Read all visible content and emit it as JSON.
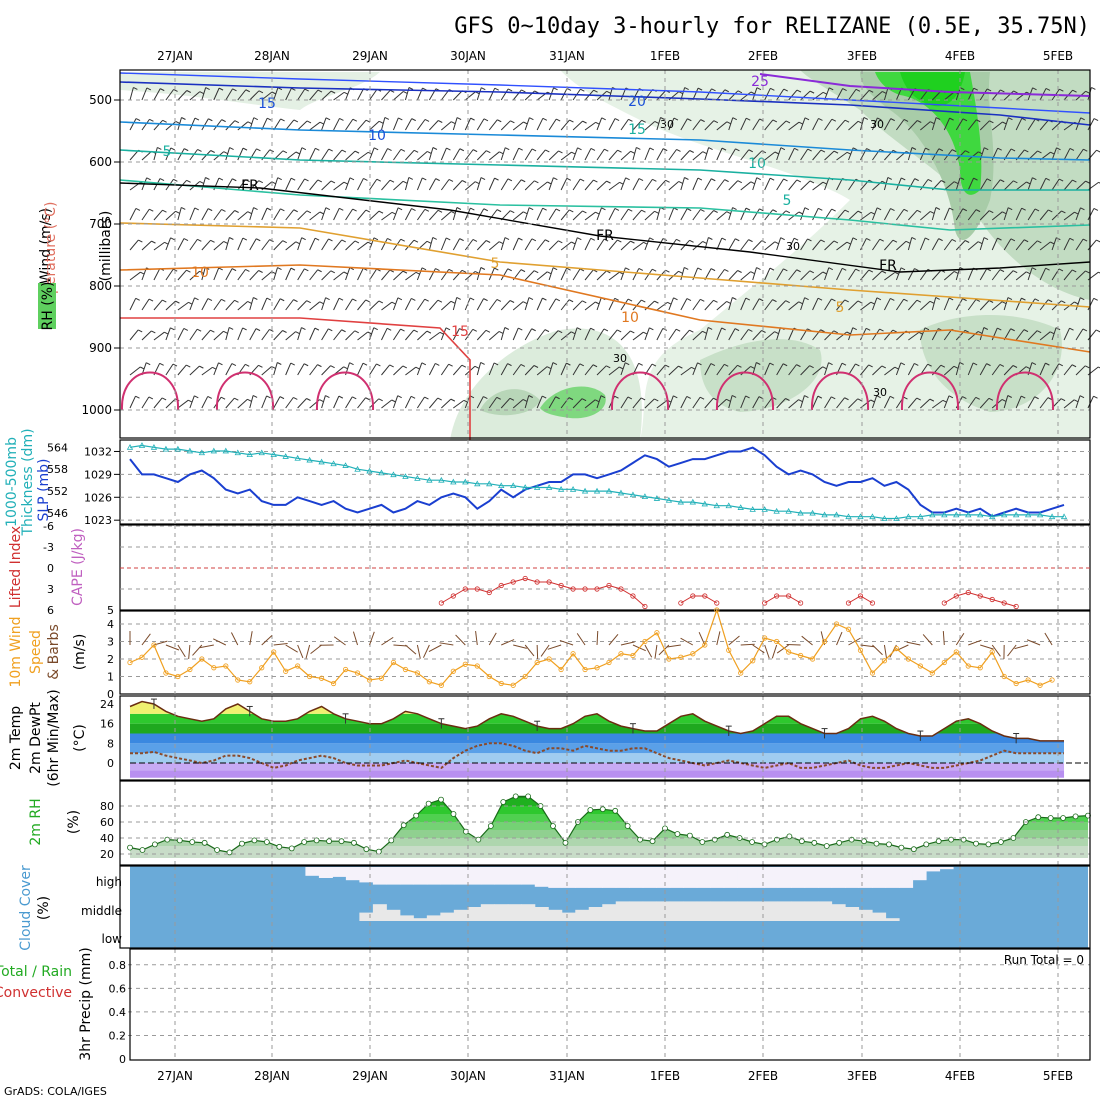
{
  "title": "GFS 0~10day 3-hourly for RELIZANE (0.5E, 35.75N)",
  "credit": "GrADS: COLA/IGES",
  "dates": [
    "27JAN",
    "28JAN",
    "29JAN",
    "30JAN",
    "31JAN",
    "1FEB",
    "2FEB",
    "3FEB",
    "4FEB",
    "5FEB"
  ],
  "panels": {
    "upper": {
      "ylabel_wind": "Wind (m/s)",
      "ylabel_temp": "Temperature (°C)",
      "ylabel_rh": "RH (%)",
      "ylabel_mb": "(millibars)",
      "pressure_ticks": [
        500,
        600,
        700,
        800,
        900,
        1000
      ]
    },
    "thickness": {
      "ylabel_left": "1000-500mb",
      "ylabel_left2": "Thickness (dm)",
      "ylabel_right": "SLP (mb)",
      "left_ticks": [
        546,
        552,
        558,
        564
      ],
      "right_ticks": [
        1023,
        1026,
        1029,
        1032
      ]
    },
    "li": {
      "ylabel_li": "Lifted Index",
      "ylabel_cape": "CAPE (J/kg)",
      "ticks": [
        -6,
        -3,
        0,
        3,
        6
      ],
      "bottom_label": "5"
    },
    "wind10": {
      "ylabel1": "10m Wind",
      "ylabel2": "Speed",
      "ylabel3": "& Barbs",
      "unit": "(m/s)",
      "ticks": [
        0,
        1,
        2,
        3,
        4
      ]
    },
    "temp2m": {
      "ylabel1": "2m Temp",
      "ylabel2": "2m DewPt",
      "ylabel3": "(6hr Min/Max)",
      "unit": "(°C)",
      "ticks": [
        0,
        8,
        16,
        24
      ]
    },
    "rh2m": {
      "ylabel": "2m RH",
      "unit": "(%)",
      "ticks": [
        20,
        40,
        60,
        80
      ]
    },
    "cloud": {
      "ylabel": "Cloud Cover",
      "unit": "(%)",
      "levels": [
        "high",
        "middle",
        "low"
      ]
    },
    "precip": {
      "ylabel1": "Total / Rain",
      "ylabel2": "Convective",
      "ylabel3": "3hr Precip (mm)",
      "ticks": [
        "0",
        "0.2",
        "0.4",
        "0.6",
        "0.8"
      ],
      "run_total": "Run Total = 0"
    }
  },
  "contour_labels": {
    "wind": [
      "15",
      "10",
      "5",
      "20",
      "15",
      "10",
      "5",
      "25"
    ],
    "temp": [
      "FR",
      "FR",
      "FR",
      "10",
      "5",
      "10",
      "5",
      "15"
    ],
    "rh": [
      "30",
      "30",
      "30",
      "30",
      "30"
    ]
  },
  "colors": {
    "slp": "#1a3fd0",
    "thickness": "#22b0b8",
    "lifted_index": "#d03030",
    "wind_speed": "#f0a020",
    "wind_barb": "#7a4a2a",
    "rh_green": "#1fd01f",
    "cloud": "#6aaad8",
    "temp_warm": "#2ea82e",
    "temp_cold": "#9a6de0"
  },
  "chart_data": {
    "type": "line",
    "x_labels": [
      "27JAN",
      "28JAN",
      "29JAN",
      "30JAN",
      "31JAN",
      "1FEB",
      "2FEB",
      "3FEB",
      "4FEB",
      "5FEB"
    ],
    "slp_mb": [
      1031,
      1029,
      1029,
      1028.5,
      1028,
      1029,
      1029.5,
      1028.5,
      1027,
      1026.5,
      1027,
      1025.5,
      1025,
      1025,
      1026,
      1025.5,
      1025,
      1025.5,
      1024.5,
      1024,
      1024.5,
      1025,
      1024,
      1024.5,
      1025.5,
      1025,
      1026,
      1026.5,
      1026,
      1024.5,
      1025.5,
      1027,
      1026,
      1027,
      1027.5,
      1028,
      1028,
      1029,
      1029,
      1028.5,
      1029,
      1029.5,
      1030.5,
      1031.5,
      1031,
      1030,
      1030.5,
      1031,
      1031,
      1031.5,
      1032,
      1032,
      1032.5,
      1031.5,
      1030,
      1029,
      1029.5,
      1029,
      1028,
      1027.5,
      1028,
      1028,
      1028.5,
      1027.5,
      1028,
      1027,
      1025,
      1024,
      1024,
      1024.5,
      1024,
      1024.5,
      1023.5,
      1024,
      1024.5,
      1024,
      1024,
      1024.5,
      1025
    ],
    "thickness_dm": [
      564,
      564.5,
      564,
      563.5,
      563.5,
      563,
      562.5,
      563,
      563,
      562.5,
      562,
      562.5,
      562,
      561.5,
      561,
      560.5,
      560,
      559.5,
      559,
      558,
      557.5,
      557,
      556.5,
      556,
      555.5,
      555,
      555,
      554.5,
      554.5,
      554,
      554,
      553.5,
      553.5,
      553,
      553,
      553,
      552.5,
      552.5,
      552,
      552,
      552,
      551.5,
      551,
      550.5,
      550,
      549.5,
      549,
      549,
      548.5,
      548,
      548,
      547.5,
      547,
      547,
      546.5,
      546.5,
      546,
      546,
      545.5,
      545.5,
      545,
      545,
      545,
      544.5,
      544.5,
      545,
      545,
      545.5,
      545.5,
      545.5,
      545.5,
      545.5,
      545,
      545.5,
      545.5,
      545.5,
      545.5,
      545,
      545
    ],
    "lifted_index": [
      6,
      6,
      6,
      6,
      6,
      6,
      6,
      6,
      6,
      6,
      6,
      6,
      6,
      6,
      6,
      6,
      6,
      6,
      6,
      6,
      6,
      6,
      6,
      6,
      6,
      6,
      5,
      4,
      3,
      3,
      3.5,
      2.5,
      2,
      1.5,
      2,
      2,
      2.5,
      3,
      3,
      3,
      2.5,
      3,
      4,
      5.5,
      6,
      6,
      5,
      4,
      4,
      5,
      6,
      6,
      6,
      5,
      4,
      4,
      5,
      6,
      6,
      6,
      5,
      4,
      5,
      6,
      6,
      6,
      6,
      6,
      5,
      4,
      3.5,
      4,
      4.5,
      5,
      5.5,
      6,
      6,
      6,
      6
    ],
    "wind10_speed": [
      1.8,
      2.1,
      2.8,
      1.2,
      1.0,
      1.4,
      2.0,
      1.5,
      1.6,
      0.8,
      0.7,
      1.5,
      2.4,
      1.3,
      1.6,
      1.0,
      0.9,
      0.6,
      1.4,
      1.2,
      0.8,
      0.9,
      1.8,
      1.4,
      1.2,
      0.7,
      0.5,
      1.3,
      1.7,
      1.6,
      1.0,
      0.6,
      0.5,
      1.0,
      1.8,
      2.0,
      1.4,
      2.3,
      1.4,
      1.5,
      1.8,
      2.3,
      2.2,
      3.0,
      3.5,
      2.0,
      2.1,
      2.3,
      2.8,
      4.8,
      2.5,
      1.2,
      1.9,
      3.2,
      3.0,
      2.4,
      2.2,
      2.0,
      3.0,
      4.0,
      3.7,
      2.5,
      1.2,
      1.9,
      2.6,
      2.0,
      1.6,
      1.2,
      1.8,
      2.4,
      1.6,
      1.5,
      2.4,
      1.0,
      0.6,
      0.8,
      0.5,
      0.8
    ],
    "temp2m": [
      23,
      25,
      24,
      21,
      19,
      18,
      17,
      18,
      22,
      24,
      21,
      18,
      17,
      17,
      18,
      21,
      23,
      20,
      18,
      17,
      16,
      16,
      18,
      21,
      20,
      18,
      16,
      15,
      14,
      15,
      18,
      20,
      19,
      17,
      15,
      14,
      14,
      16,
      19,
      20,
      17,
      15,
      14,
      13,
      13,
      16,
      19,
      20,
      17,
      15,
      13,
      12,
      13,
      16,
      19,
      19,
      16,
      14,
      12,
      12,
      14,
      18,
      19,
      17,
      14,
      12,
      11,
      11,
      14,
      17,
      18,
      16,
      13,
      11,
      10,
      10,
      9,
      9,
      9
    ],
    "dewpt2m": [
      4,
      4,
      4.5,
      3,
      2,
      1,
      0,
      1,
      3,
      3,
      2,
      0,
      -2,
      -1,
      1,
      2,
      3,
      2,
      0,
      -1,
      -1,
      -1,
      0,
      1,
      0,
      -1,
      -2,
      2,
      5,
      7,
      8,
      8,
      7,
      5,
      4,
      6,
      6,
      5,
      7,
      6,
      5,
      5,
      6,
      6,
      4,
      2,
      1,
      0,
      -1,
      0,
      1,
      0,
      -1,
      -2,
      -1,
      0,
      -2,
      -2,
      -1,
      0,
      1,
      -1,
      -2,
      -2,
      -1,
      0,
      -1,
      -2,
      -2,
      -1,
      0,
      1,
      3,
      5,
      4,
      4,
      4,
      4,
      4
    ],
    "rh2m": [
      28,
      25,
      32,
      38,
      37,
      35,
      34,
      25,
      22,
      33,
      37,
      35,
      29,
      27,
      35,
      37,
      36,
      36,
      34,
      26,
      23,
      37,
      56,
      68,
      83,
      88,
      70,
      48,
      38,
      55,
      85,
      92,
      92,
      80,
      55,
      34,
      60,
      75,
      76,
      74,
      55,
      38,
      36,
      52,
      45,
      43,
      35,
      38,
      44,
      40,
      35,
      32,
      38,
      42,
      36,
      34,
      30,
      34,
      38,
      36,
      33,
      32,
      28,
      26,
      32,
      36,
      38,
      38,
      33,
      32,
      35,
      40,
      60,
      66,
      65,
      65,
      67,
      68
    ],
    "cloud_high_pct": [
      0,
      0,
      0,
      0,
      0,
      0,
      0,
      0,
      0,
      0,
      0,
      0,
      0,
      40,
      50,
      45,
      60,
      70,
      80,
      80,
      80,
      80,
      80,
      80,
      80,
      80,
      80,
      80,
      80,
      80,
      90,
      95,
      95,
      95,
      95,
      95,
      95,
      95,
      95,
      95,
      95,
      95,
      95,
      95,
      95,
      95,
      95,
      95,
      95,
      95,
      95,
      95,
      95,
      95,
      95,
      95,
      95,
      95,
      60,
      20,
      10,
      0,
      0,
      0,
      0,
      0,
      0,
      0,
      0,
      0,
      0
    ],
    "cloud_mid_pct": [
      0,
      0,
      0,
      0,
      0,
      0,
      0,
      0,
      0,
      0,
      0,
      0,
      0,
      0,
      0,
      0,
      0,
      30,
      60,
      40,
      20,
      10,
      20,
      30,
      40,
      50,
      60,
      60,
      60,
      60,
      50,
      40,
      30,
      40,
      50,
      60,
      70,
      70,
      70,
      70,
      70,
      70,
      70,
      70,
      70,
      70,
      70,
      70,
      70,
      70,
      70,
      70,
      60,
      50,
      40,
      30,
      10,
      0,
      0,
      0,
      0,
      0,
      0,
      0,
      0,
      0,
      0
    ],
    "precip_3hr": 0
  }
}
